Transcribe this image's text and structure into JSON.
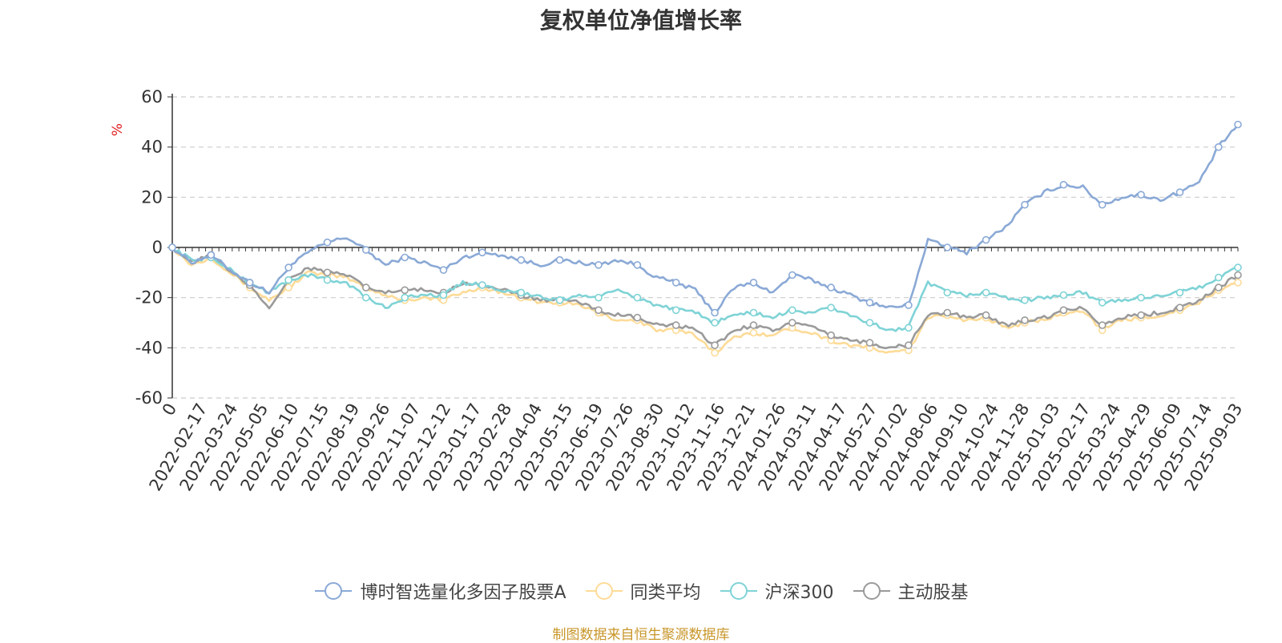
{
  "page": {
    "title": "复权单位净值增长率",
    "source": "制图数据来自恒生聚源数据库"
  },
  "colors": {
    "fund": "#8aa9d6",
    "peer": "#fddb97",
    "csi300": "#7fd3d6",
    "active": "#9a9a9a",
    "axis": "#333333",
    "grid": "#cccccc",
    "unit": "#e02020"
  },
  "chart_data": {
    "type": "line",
    "title": "复权单位净值增长率",
    "ylabel": "%",
    "xlabel": "",
    "ylim": [
      -60,
      60
    ],
    "yticks": [
      60,
      40,
      20,
      0,
      -20,
      -40,
      -60
    ],
    "grid": true,
    "legend_position": "bottom",
    "x_tick_labels": [
      "0",
      "2022-02-17",
      "2022-03-24",
      "2022-05-05",
      "2022-06-10",
      "2022-07-15",
      "2022-08-19",
      "2022-09-26",
      "2022-11-07",
      "2022-12-12",
      "2023-01-17",
      "2023-02-28",
      "2023-04-04",
      "2023-05-15",
      "2023-06-19",
      "2023-07-26",
      "2023-08-30",
      "2023-10-12",
      "2023-11-16",
      "2023-12-21",
      "2024-01-26",
      "2024-03-11",
      "2024-04-17",
      "2024-05-27",
      "2024-07-02",
      "2024-08-06",
      "2024-09-10",
      "2024-10-24",
      "2024-11-28",
      "2025-01-03",
      "2025-02-17",
      "2025-03-24",
      "2025-04-29",
      "2025-06-09",
      "2025-07-14",
      "2025-09-03"
    ],
    "series": [
      {
        "name": "博时智选量化多因子股票A",
        "color_key": "fund",
        "values": [
          0,
          -6,
          -3,
          -9,
          -14,
          -18,
          -8,
          -2,
          2,
          4,
          -1,
          -7,
          -4,
          -6,
          -9,
          -4,
          -2,
          -3,
          -5,
          -7,
          -5,
          -6,
          -7,
          -5,
          -7,
          -12,
          -14,
          -17,
          -26,
          -16,
          -14,
          -18,
          -11,
          -13,
          -16,
          -19,
          -22,
          -24,
          -23,
          3,
          0,
          -2,
          3,
          8,
          17,
          22,
          25,
          24,
          17,
          20,
          21,
          19,
          22,
          26,
          40,
          49
        ]
      },
      {
        "name": "同类平均",
        "color_key": "peer",
        "values": [
          0,
          -7,
          -4,
          -10,
          -16,
          -21,
          -16,
          -10,
          -11,
          -12,
          -16,
          -19,
          -21,
          -20,
          -21,
          -18,
          -16,
          -18,
          -20,
          -22,
          -22,
          -23,
          -26,
          -29,
          -29,
          -33,
          -33,
          -35,
          -42,
          -36,
          -34,
          -35,
          -32,
          -34,
          -37,
          -39,
          -40,
          -42,
          -41,
          -28,
          -27,
          -29,
          -28,
          -32,
          -30,
          -29,
          -26,
          -25,
          -33,
          -29,
          -28,
          -27,
          -25,
          -22,
          -17,
          -14
        ]
      },
      {
        "name": "沪深300",
        "color_key": "csi300",
        "values": [
          0,
          -5,
          -4,
          -9,
          -14,
          -18,
          -13,
          -11,
          -13,
          -14,
          -20,
          -24,
          -20,
          -19,
          -19,
          -14,
          -15,
          -17,
          -18,
          -20,
          -21,
          -19,
          -20,
          -17,
          -20,
          -23,
          -25,
          -26,
          -30,
          -27,
          -26,
          -28,
          -25,
          -26,
          -24,
          -27,
          -30,
          -33,
          -32,
          -14,
          -18,
          -19,
          -18,
          -20,
          -21,
          -20,
          -19,
          -18,
          -22,
          -21,
          -20,
          -19,
          -18,
          -16,
          -12,
          -8
        ]
      },
      {
        "name": "主动股基",
        "color_key": "active",
        "values": [
          0,
          -6,
          -3,
          -10,
          -15,
          -24,
          -13,
          -8,
          -10,
          -11,
          -16,
          -18,
          -17,
          -17,
          -18,
          -14,
          -15,
          -17,
          -19,
          -21,
          -21,
          -22,
          -25,
          -27,
          -28,
          -31,
          -31,
          -33,
          -39,
          -33,
          -31,
          -33,
          -30,
          -32,
          -35,
          -37,
          -38,
          -40,
          -39,
          -27,
          -26,
          -28,
          -27,
          -31,
          -29,
          -28,
          -25,
          -24,
          -31,
          -28,
          -27,
          -26,
          -24,
          -21,
          -16,
          -11
        ]
      }
    ]
  }
}
